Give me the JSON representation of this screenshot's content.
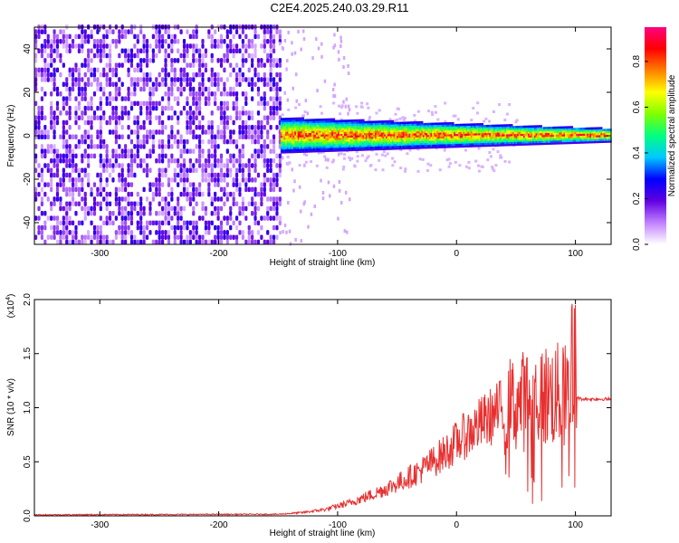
{
  "title": "C2E4.2025.240.03.29.R11",
  "chart_data": [
    {
      "type": "heatmap",
      "xlabel": "Height of straight line (km)",
      "ylabel": "Frequency (Hz)",
      "xlim": [
        -355,
        130
      ],
      "ylim": [
        -50,
        50
      ],
      "xticks": [
        -300,
        -200,
        -100,
        0,
        100
      ],
      "yticks": [
        -40,
        -20,
        0,
        20,
        40
      ],
      "colorbar": {
        "label": "Normalized spectral amplitude",
        "range": [
          0,
          0.95
        ],
        "ticks": [
          0.0,
          0.2,
          0.4,
          0.6,
          0.8
        ],
        "colors": [
          "#ffffff",
          "#c080ff",
          "#6000e0",
          "#0000ff",
          "#00c8ff",
          "#00ff80",
          "#80ff00",
          "#ffff00",
          "#ff8000",
          "#ff0000",
          "#ff0080"
        ]
      },
      "regions": [
        {
          "name": "noise",
          "x": [
            -355,
            -148
          ],
          "y": [
            -50,
            50
          ],
          "amplitude": [
            0.05,
            0.25
          ]
        },
        {
          "name": "signal",
          "x": [
            -148,
            130
          ],
          "center_freq": 0,
          "halfwidth_hz": [
            8,
            3
          ],
          "amplitude": [
            0.3,
            0.9
          ]
        }
      ]
    },
    {
      "type": "line",
      "xlabel": "Height of straight line (km)",
      "ylabel": "SNR (10 * v/v)",
      "scale_label": "(x10",
      "scale_exp": "4",
      "scale_close": ")",
      "xlim": [
        -355,
        130
      ],
      "ylim": [
        0,
        2.0
      ],
      "xticks": [
        -300,
        -200,
        -100,
        0,
        100
      ],
      "yticks": [
        0.0,
        0.5,
        1.0,
        1.5,
        2.0
      ],
      "series": [
        {
          "color": "#e83030",
          "envelope": {
            "x": [
              -355,
              -150,
              -130,
              -110,
              -90,
              -70,
              -50,
              -30,
              -10,
              0,
              20,
              40,
              60,
              80,
              95,
              100,
              105,
              130
            ],
            "y": [
              0.01,
              0.015,
              0.03,
              0.06,
              0.12,
              0.2,
              0.3,
              0.42,
              0.58,
              0.68,
              0.85,
              1.0,
              1.08,
              1.12,
              1.1,
              1.1,
              1.08,
              1.08
            ]
          }
        }
      ]
    }
  ]
}
